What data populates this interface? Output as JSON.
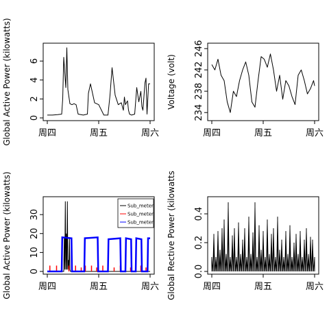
{
  "chart_data": [
    {
      "type": "line",
      "ylabel": "Global Active Power (kilowatts)",
      "x_ticks": [
        "周四",
        "周五",
        "周六"
      ],
      "xlim": [
        0,
        2
      ],
      "ylim": [
        0,
        7.6
      ],
      "y_ticks": [
        0,
        2,
        4,
        6
      ],
      "series": [
        {
          "color": "#000000",
          "x": [
            0.0,
            0.1,
            0.2,
            0.28,
            0.3,
            0.32,
            0.36,
            0.38,
            0.4,
            0.44,
            0.48,
            0.52,
            0.56,
            0.6,
            0.7,
            0.78,
            0.8,
            0.84,
            0.88,
            0.92,
            1.0,
            1.1,
            1.14,
            1.18,
            1.22,
            1.26,
            1.32,
            1.38,
            1.44,
            1.48,
            1.5,
            1.52,
            1.56,
            1.58,
            1.6,
            1.64,
            1.7,
            1.74,
            1.78,
            1.82,
            1.84,
            1.86,
            1.9,
            1.92,
            1.94,
            1.97,
            2.0
          ],
          "y": [
            0.3,
            0.3,
            0.35,
            0.4,
            2.0,
            6.4,
            3.2,
            7.4,
            3.0,
            1.5,
            1.4,
            1.5,
            1.4,
            0.4,
            0.3,
            0.4,
            2.6,
            3.6,
            2.6,
            1.6,
            1.4,
            0.3,
            0.3,
            0.3,
            2.4,
            5.3,
            2.4,
            1.4,
            1.6,
            0.8,
            2.2,
            1.4,
            1.8,
            0.8,
            0.4,
            0.3,
            0.4,
            3.2,
            1.7,
            2.8,
            1.2,
            0.8,
            3.7,
            4.2,
            0.4,
            3.6,
            3.6
          ]
        }
      ]
    },
    {
      "type": "line",
      "ylabel": "Voltage (volt)",
      "x_ticks": [
        "周四",
        "周五",
        "周六"
      ],
      "xlim": [
        0,
        2
      ],
      "ylim": [
        233,
        246.5
      ],
      "y_ticks": [
        234,
        238,
        242,
        246
      ],
      "series": [
        {
          "color": "#000000",
          "x": [
            0.0,
            0.06,
            0.12,
            0.18,
            0.24,
            0.3,
            0.36,
            0.42,
            0.48,
            0.54,
            0.6,
            0.66,
            0.72,
            0.78,
            0.84,
            0.9,
            0.96,
            1.02,
            1.08,
            1.14,
            1.2,
            1.26,
            1.32,
            1.38,
            1.44,
            1.5,
            1.56,
            1.62,
            1.68,
            1.74,
            1.8,
            1.86,
            1.92,
            1.98,
            2.0
          ],
          "y": [
            243,
            242,
            244,
            241,
            240,
            236,
            234,
            238,
            237,
            240,
            242,
            243.5,
            241,
            236,
            235,
            240,
            244.5,
            244,
            242.5,
            245,
            242,
            238,
            241,
            236.5,
            240,
            239,
            237,
            235.5,
            241,
            242,
            240,
            237.5,
            238.5,
            240,
            239
          ]
        }
      ]
    },
    {
      "type": "line",
      "ylabel": "Global Active Power (kilowatts)",
      "x_ticks": [
        "周四",
        "周五",
        "周六"
      ],
      "xlim": [
        0,
        2
      ],
      "ylim": [
        0,
        38
      ],
      "y_ticks": [
        0,
        10,
        20,
        30
      ],
      "legend": {
        "position": "top-right",
        "entries": [
          "Sub_meteri",
          "Sub_meteri",
          "Sub_meteri"
        ]
      },
      "series": [
        {
          "name": "Sub_meteri",
          "color": "#000000",
          "x": [
            0.0,
            0.32,
            0.33,
            0.34,
            0.35,
            0.36,
            0.37,
            0.38,
            0.39,
            0.4,
            0.41,
            0.42,
            0.43,
            0.44,
            0.45,
            0.46,
            2.0
          ],
          "y": [
            0,
            0,
            18,
            1,
            37,
            1,
            20,
            1,
            37,
            1,
            6,
            1,
            18,
            1,
            0,
            0,
            0
          ]
        },
        {
          "name": "Sub_meteri",
          "color": "#ff0000",
          "x": [
            0.05,
            0.06,
            0.18,
            0.19,
            0.28,
            0.29,
            0.42,
            0.43,
            0.55,
            0.56,
            0.66,
            0.67,
            0.74,
            0.75,
            0.86,
            0.87,
            0.96,
            0.97,
            1.08,
            1.09,
            1.18,
            1.19,
            1.3,
            1.31,
            1.42,
            1.43,
            1.52,
            1.53,
            1.62,
            1.63,
            1.72,
            1.73,
            1.82,
            1.83,
            1.92,
            1.93
          ],
          "y": [
            2,
            2,
            2,
            2,
            1,
            1,
            2,
            2,
            2,
            2,
            1,
            1,
            2,
            2,
            2,
            2,
            1,
            1,
            2,
            2,
            2,
            2,
            1,
            1,
            2,
            2,
            2,
            2,
            1,
            1,
            2,
            2,
            2,
            2,
            1,
            1
          ]
        },
        {
          "name": "Sub_meteri",
          "color": "#0000ff",
          "x": [
            0.0,
            0.28,
            0.29,
            0.47,
            0.48,
            0.72,
            0.73,
            0.98,
            0.99,
            1.18,
            1.19,
            1.42,
            1.43,
            1.52,
            1.53,
            1.63,
            1.64,
            1.72,
            1.73,
            1.83,
            1.84,
            1.95,
            1.96,
            2.0
          ],
          "y": [
            0,
            0,
            18,
            17.5,
            0,
            0,
            17.5,
            18,
            0,
            0,
            17,
            17.5,
            0,
            0,
            17.5,
            17,
            0,
            0,
            17.5,
            17,
            0,
            0,
            17.5,
            17.5
          ]
        }
      ]
    },
    {
      "type": "line",
      "ylabel": "Global Rective Power (kilowatts",
      "x_ticks": [
        "周四",
        "周五",
        "周六"
      ],
      "xlim": [
        0,
        2
      ],
      "ylim": [
        0,
        0.5
      ],
      "y_ticks": [
        0.0,
        0.2,
        0.4
      ],
      "series": [
        {
          "color": "#000000",
          "x": [
            0.0,
            0.02,
            0.04,
            0.06,
            0.08,
            0.1,
            0.12,
            0.14,
            0.16,
            0.18,
            0.2,
            0.22,
            0.24,
            0.26,
            0.28,
            0.3,
            0.32,
            0.34,
            0.36,
            0.38,
            0.4,
            0.42,
            0.44,
            0.46,
            0.48,
            0.5,
            0.52,
            0.54,
            0.56,
            0.58,
            0.6,
            0.62,
            0.64,
            0.66,
            0.68,
            0.7,
            0.72,
            0.74,
            0.76,
            0.78,
            0.8,
            0.82,
            0.84,
            0.86,
            0.88,
            0.9,
            0.92,
            0.94,
            0.96,
            0.98,
            1.0,
            1.02,
            1.04,
            1.06,
            1.08,
            1.1,
            1.12,
            1.14,
            1.16,
            1.18,
            1.2,
            1.22,
            1.24,
            1.26,
            1.28,
            1.3,
            1.32,
            1.34,
            1.36,
            1.38,
            1.4,
            1.42,
            1.44,
            1.46,
            1.48,
            1.5,
            1.52,
            1.54,
            1.56,
            1.58,
            1.6,
            1.62,
            1.64,
            1.66,
            1.68,
            1.7,
            1.72,
            1.74,
            1.76,
            1.78,
            1.8,
            1.82,
            1.84,
            1.86,
            1.88,
            1.9,
            1.92,
            1.94,
            1.96,
            1.98,
            2.0
          ],
          "y": [
            0.1,
            0.0,
            0.26,
            0.0,
            0.1,
            0.0,
            0.28,
            0.0,
            0.15,
            0.0,
            0.3,
            0.0,
            0.36,
            0.0,
            0.12,
            0.0,
            0.48,
            0.0,
            0.1,
            0.0,
            0.25,
            0.0,
            0.3,
            0.0,
            0.1,
            0.0,
            0.34,
            0.0,
            0.12,
            0.0,
            0.22,
            0.0,
            0.3,
            0.0,
            0.1,
            0.0,
            0.38,
            0.0,
            0.12,
            0.0,
            0.27,
            0.0,
            0.48,
            0.0,
            0.1,
            0.0,
            0.32,
            0.0,
            0.15,
            0.0,
            0.28,
            0.0,
            0.1,
            0.0,
            0.36,
            0.0,
            0.12,
            0.0,
            0.26,
            0.0,
            0.3,
            0.0,
            0.1,
            0.0,
            0.38,
            0.0,
            0.15,
            0.0,
            0.22,
            0.0,
            0.1,
            0.0,
            0.28,
            0.0,
            0.12,
            0.0,
            0.32,
            0.0,
            0.1,
            0.0,
            0.2,
            0.0,
            0.26,
            0.0,
            0.12,
            0.0,
            0.28,
            0.0,
            0.1,
            0.0,
            0.22,
            0.0,
            0.3,
            0.0,
            0.12,
            0.0,
            0.24,
            0.0,
            0.22,
            0.0,
            0.1
          ]
        }
      ]
    }
  ]
}
